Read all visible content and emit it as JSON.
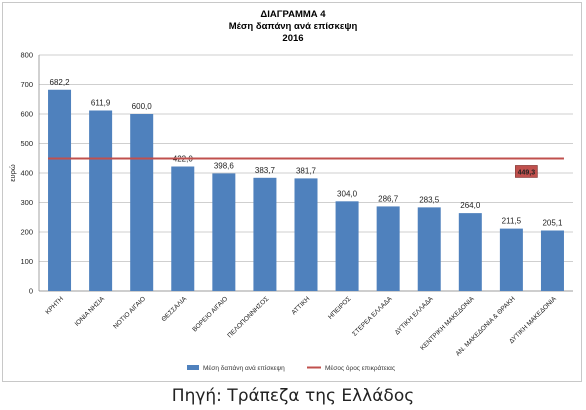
{
  "chart_data": {
    "type": "bar",
    "title_lines": [
      "ΔΙΑΓΡΑΜΜΑ 4",
      "Μέση δαπάνη ανά επίσκεψη",
      "2016"
    ],
    "ylabel": "ευρώ",
    "xlabel": "",
    "ylim": [
      0,
      800
    ],
    "yticks": [
      0,
      100,
      200,
      300,
      400,
      500,
      600,
      700,
      800
    ],
    "grid": true,
    "categories": [
      "ΚΡΗΤΗ",
      "ΙΟΝΙΑ ΝΗΣΙΑ",
      "ΝΟΤΙΟ ΑΙΓΑΙΟ",
      "ΘΕΣΣΑΛΙΑ",
      "ΒΟΡΕΙΟ ΑΙΓΑΙΟ",
      "ΠΕΛΟΠΟΝΝΗΣΟΣ",
      "ΑΤΤΙΚΗ",
      "ΗΠΕΙΡΟΣ",
      "ΣΤΕΡΕΑ ΕΛΛΑΔΑ",
      "ΔΥΤΙΚΗ ΕΛΛΑΔΑ",
      "ΚΕΝΤΡΙΚΗ ΜΑΚΕΔΟΝΙΑ",
      "ΑΝ. ΜΑΚΕΔΟΝΙΑ & ΘΡΑΚΗ",
      "ΔΥΤΙΚΗ ΜΑΚΕΔΟΝΙΑ"
    ],
    "series": [
      {
        "name": "Μέση δαπάνη ανά επίσκεψη",
        "type": "bar",
        "color": "#4f81bd",
        "values": [
          682.2,
          611.9,
          600.0,
          422.0,
          398.6,
          383.7,
          381.7,
          304.0,
          286.7,
          283.5,
          264.0,
          211.5,
          205.1
        ],
        "labels": [
          "682,2",
          "611,9",
          "600,0",
          "422,0",
          "398,6",
          "383,7",
          "381,7",
          "304,0",
          "286,7",
          "283,5",
          "264,0",
          "211,5",
          "205,1"
        ]
      },
      {
        "name": "Μέσος όρος επικράτειας",
        "type": "line",
        "color": "#c0504d",
        "value": 449.3,
        "label": "449,3"
      }
    ],
    "legend_position": "bottom"
  },
  "source": "Πηγή: Τράπεζα της Ελλάδος"
}
